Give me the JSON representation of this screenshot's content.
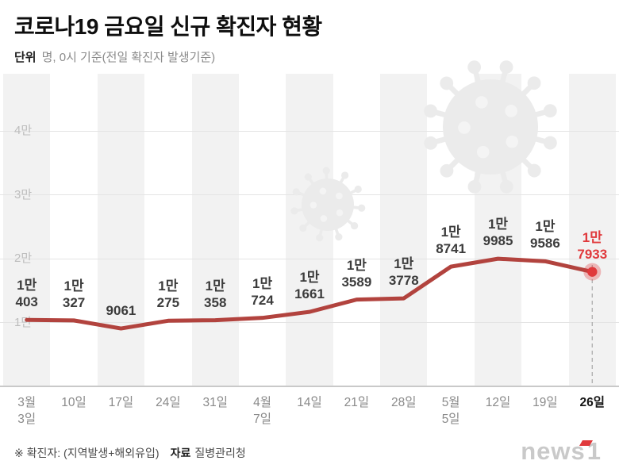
{
  "header": {
    "title": "코로나19 금요일 신규 확진자 현황",
    "unit_label": "단위",
    "unit_desc": "명, 0시 기준(전일 확진자 발생기준)"
  },
  "chart_data": {
    "type": "line",
    "title": "코로나19 금요일 신규 확진자 현황",
    "x": [
      "3월\n3일",
      "10일",
      "17일",
      "24일",
      "31일",
      "4월\n7일",
      "14일",
      "21일",
      "28일",
      "5월\n5일",
      "12일",
      "19일",
      "26일"
    ],
    "values": [
      10403,
      10327,
      9061,
      10275,
      10358,
      10724,
      11661,
      13589,
      13778,
      18741,
      19985,
      19586,
      17933
    ],
    "labels": [
      [
        "1만",
        "403"
      ],
      [
        "1만",
        "327"
      ],
      [
        "9061"
      ],
      [
        "1만",
        "275"
      ],
      [
        "1만",
        "358"
      ],
      [
        "1만",
        "724"
      ],
      [
        "1만",
        "1661"
      ],
      [
        "1만",
        "3589"
      ],
      [
        "1만",
        "3778"
      ],
      [
        "1만",
        "8741"
      ],
      [
        "1만",
        "9985"
      ],
      [
        "1만",
        "9586"
      ],
      [
        "1만",
        "7933"
      ]
    ],
    "highlight_index": 12,
    "yticks": [
      {
        "value": 10000,
        "label": "1만"
      },
      {
        "value": 20000,
        "label": "2만"
      },
      {
        "value": 30000,
        "label": "3만"
      },
      {
        "value": 40000,
        "label": "4만"
      }
    ],
    "ylim": [
      0,
      45000
    ],
    "grid": true,
    "legend": "none",
    "line_color": "#b2433e",
    "highlight_color": "#e0393c",
    "stripe_color": "#f2f2f2",
    "watermark_color": "#ebebeb",
    "watermark_icon": "coronavirus-icon"
  },
  "footer": {
    "note": "※ 확진자: (지역발생+해외유입)",
    "source_label": "자료",
    "source_value": "질병관리청"
  },
  "logo": {
    "news": "news",
    "one": "1"
  }
}
